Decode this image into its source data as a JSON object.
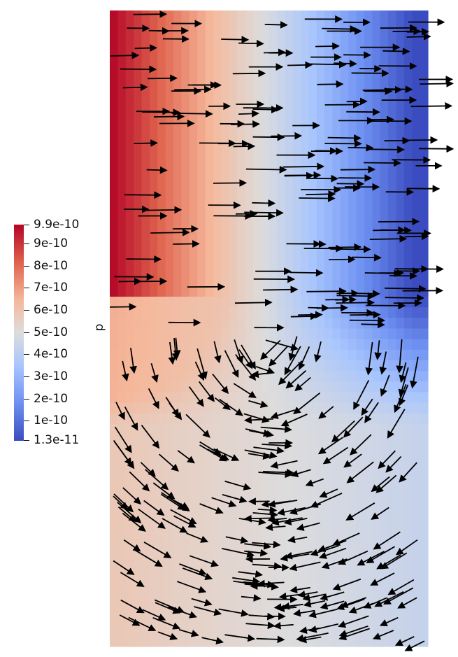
{
  "legend": {
    "title": "p",
    "ticks": [
      "9.9e-10",
      "9e-10",
      "8e-10",
      "7e-10",
      "6e-10",
      "5e-10",
      "4e-10",
      "3e-10",
      "2e-10",
      "1e-10",
      "1.3e-11"
    ],
    "colormap": [
      "#b40426",
      "#e0654f",
      "#f5b89b",
      "#dddcdc",
      "#a9c6fd",
      "#6f92f3",
      "#3b4cc0"
    ]
  },
  "field": {
    "description_scale": "pressure field with velocity glyphs"
  }
}
